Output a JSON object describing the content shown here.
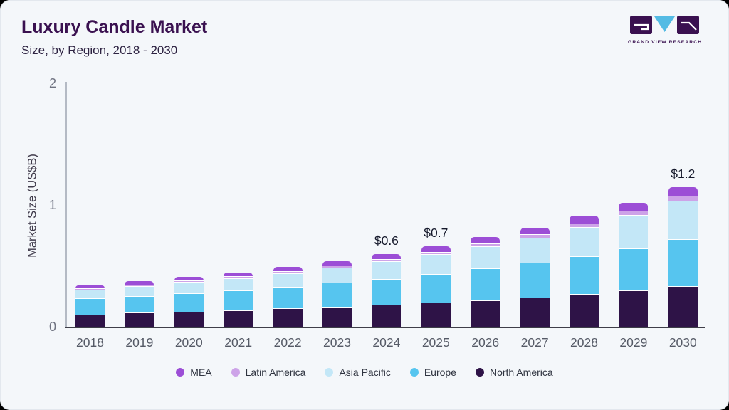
{
  "header": {
    "title": "Luxury Candle Market",
    "subtitle": "Size, by Region, 2018 - 2030"
  },
  "logo": {
    "caption": "GRAND VIEW RESEARCH"
  },
  "chart_data": {
    "type": "bar",
    "stacked": true,
    "orientation": "vertical",
    "title": "Luxury Candle Market",
    "subtitle": "Size, by Region, 2018 - 2030",
    "xlabel": "",
    "ylabel": "Market Size (US$B)",
    "units": "US$B",
    "ylim": [
      0,
      2
    ],
    "yticks": [
      0,
      1,
      2
    ],
    "grid": false,
    "legend_position": "bottom",
    "categories": [
      "2018",
      "2019",
      "2020",
      "2021",
      "2022",
      "2023",
      "2024",
      "2025",
      "2026",
      "2027",
      "2028",
      "2029",
      "2030"
    ],
    "stack_order": "bottom-to-top",
    "series": [
      {
        "name": "North America",
        "color": "#2E1347",
        "values": [
          0.107,
          0.12,
          0.128,
          0.14,
          0.155,
          0.17,
          0.185,
          0.205,
          0.225,
          0.248,
          0.275,
          0.305,
          0.34
        ]
      },
      {
        "name": "Europe",
        "color": "#56C5EF",
        "values": [
          0.13,
          0.14,
          0.153,
          0.163,
          0.18,
          0.196,
          0.215,
          0.235,
          0.258,
          0.283,
          0.312,
          0.345,
          0.385
        ]
      },
      {
        "name": "Asia Pacific",
        "color": "#C3E7F7",
        "values": [
          0.072,
          0.08,
          0.092,
          0.102,
          0.112,
          0.125,
          0.142,
          0.16,
          0.182,
          0.207,
          0.238,
          0.272,
          0.315
        ]
      },
      {
        "name": "Latin America",
        "color": "#CDA3E8",
        "values": [
          0.01,
          0.012,
          0.013,
          0.014,
          0.016,
          0.018,
          0.02,
          0.022,
          0.025,
          0.028,
          0.031,
          0.035,
          0.04
        ]
      },
      {
        "name": "MEA",
        "color": "#9C4ED6",
        "values": [
          0.025,
          0.027,
          0.029,
          0.031,
          0.034,
          0.037,
          0.041,
          0.045,
          0.05,
          0.055,
          0.061,
          0.068,
          0.075
        ]
      }
    ],
    "value_labels": [
      "",
      "",
      "",
      "",
      "",
      "",
      "$0.6",
      "$0.7",
      "",
      "",
      "",
      "",
      "$1.2"
    ]
  },
  "legend": {
    "items": [
      {
        "label": "MEA",
        "color": "#9C4ED6"
      },
      {
        "label": "Latin America",
        "color": "#CDA3E8"
      },
      {
        "label": "Asia Pacific",
        "color": "#C3E7F7"
      },
      {
        "label": "Europe",
        "color": "#56C5EF"
      },
      {
        "label": "North America",
        "color": "#2E1347"
      }
    ]
  }
}
